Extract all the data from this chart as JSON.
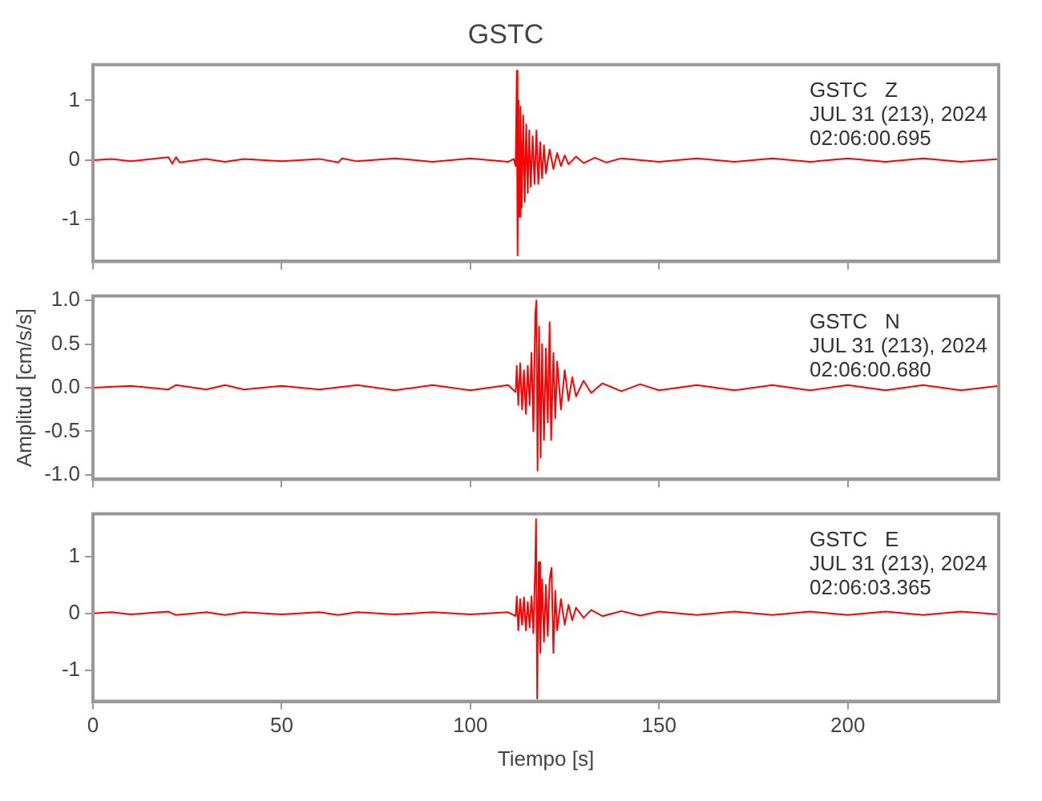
{
  "chart_data": [
    {
      "type": "line",
      "title": "GSTC",
      "xlim": [
        0,
        240
      ],
      "xticks": [
        0,
        50,
        100,
        150,
        200
      ],
      "ylim": [
        -1.7,
        1.6
      ],
      "yticks": [
        -1,
        0,
        1
      ],
      "grid": false,
      "marker": "none",
      "tick_labels": "y",
      "annotations": [
        "GSTC   Z",
        "JUL 31 (213), 2024",
        "02:06:00.695"
      ],
      "series": [
        {
          "color": "#ff0000",
          "x": [
            0,
            5,
            10,
            20,
            21,
            22,
            23,
            30,
            35,
            40,
            50,
            60,
            65,
            66,
            70,
            80,
            90,
            100,
            110,
            111.5,
            112,
            112.3,
            112.5,
            112.8,
            113,
            113.3,
            113.6,
            114,
            114.4,
            114.8,
            115.2,
            115.6,
            116,
            116.5,
            117,
            117.5,
            118,
            118.5,
            119,
            119.5,
            120,
            121,
            122,
            123,
            124,
            125,
            126,
            128,
            130,
            133,
            136,
            140,
            150,
            160,
            170,
            180,
            190,
            200,
            210,
            220,
            230,
            240
          ],
          "values": [
            0,
            0.02,
            -0.02,
            0.05,
            -0.06,
            0.05,
            -0.04,
            0.02,
            -0.03,
            0.02,
            -0.02,
            0.02,
            -0.04,
            0.03,
            -0.02,
            0.03,
            -0.03,
            0.03,
            -0.03,
            0.02,
            -0.1,
            1.5,
            -1.6,
            1.0,
            -0.95,
            0.9,
            -0.8,
            0.75,
            -0.7,
            0.6,
            -0.55,
            0.5,
            -0.45,
            0.4,
            -0.4,
            0.5,
            -0.4,
            0.3,
            -0.3,
            0.25,
            -0.22,
            0.18,
            -0.15,
            0.12,
            -0.1,
            0.08,
            -0.07,
            0.06,
            -0.05,
            0.04,
            -0.04,
            0.03,
            -0.03,
            0.03,
            -0.03,
            0.03,
            -0.03,
            0.03,
            -0.03,
            0.03,
            -0.03,
            0.02
          ]
        }
      ]
    },
    {
      "type": "line",
      "ylabel": "Amplitud [cm/s/s]",
      "xlim": [
        0,
        240
      ],
      "xticks": [
        0,
        50,
        100,
        150,
        200
      ],
      "ylim": [
        -1.05,
        1.05
      ],
      "yticks": [
        {
          "value": -1,
          "label": "-1.0"
        },
        -0.5,
        {
          "value": 0,
          "label": "0.0"
        },
        0.5,
        {
          "value": 1,
          "label": "1.0"
        }
      ],
      "grid": false,
      "marker": "none",
      "tick_labels": "y",
      "annotations": [
        "GSTC   N",
        "JUL 31 (213), 2024",
        "02:06:00.680"
      ],
      "series": [
        {
          "color": "#ff0000",
          "x": [
            0,
            10,
            20,
            22,
            30,
            35,
            40,
            50,
            60,
            70,
            80,
            90,
            100,
            110,
            112,
            112.3,
            112.7,
            113.2,
            113.7,
            114.2,
            114.7,
            115.2,
            115.7,
            116.2,
            116.7,
            117.2,
            117.5,
            117.8,
            118.2,
            118.6,
            119,
            119.5,
            120,
            120.5,
            121,
            121.4,
            122,
            122.5,
            123,
            124,
            125,
            126,
            127,
            128,
            130,
            132,
            135,
            140,
            145,
            150,
            160,
            170,
            180,
            190,
            200,
            210,
            220,
            230,
            240
          ],
          "values": [
            0,
            0.02,
            -0.02,
            0.03,
            -0.02,
            0.03,
            -0.02,
            0.02,
            -0.02,
            0.03,
            -0.03,
            0.03,
            -0.03,
            0.03,
            -0.05,
            0.25,
            -0.2,
            0.28,
            -0.25,
            0.2,
            -0.3,
            0.25,
            -0.2,
            0.4,
            -0.5,
            0.85,
            1.0,
            -0.95,
            0.7,
            -0.8,
            0.5,
            -0.6,
            0.45,
            -0.4,
            0.75,
            -0.6,
            0.4,
            -0.35,
            0.3,
            -0.25,
            0.2,
            -0.15,
            0.12,
            -0.1,
            0.08,
            -0.06,
            0.05,
            -0.04,
            0.04,
            -0.03,
            0.03,
            -0.03,
            0.03,
            -0.03,
            0.03,
            -0.03,
            0.03,
            -0.03,
            0.02
          ]
        }
      ]
    },
    {
      "type": "line",
      "xlabel": "Tiempo [s]",
      "xlim": [
        0,
        240
      ],
      "xticks": [
        0,
        50,
        100,
        150,
        200
      ],
      "ylim": [
        -1.55,
        1.75
      ],
      "yticks": [
        -1,
        0,
        1
      ],
      "grid": false,
      "marker": "none",
      "annotations": [
        "GSTC   E",
        "JUL 31 (213), 2024",
        "02:06:03.365"
      ],
      "series": [
        {
          "color": "#ff0000",
          "x": [
            0,
            5,
            10,
            20,
            22,
            30,
            35,
            40,
            50,
            60,
            65,
            70,
            80,
            90,
            100,
            110,
            112,
            112.3,
            112.7,
            113.2,
            113.7,
            114.2,
            114.7,
            115.2,
            115.7,
            116.2,
            116.7,
            117.2,
            117.4,
            117.7,
            118.1,
            118.5,
            119,
            119.5,
            120,
            120.5,
            121,
            121.5,
            122,
            122.5,
            123,
            124,
            125,
            126,
            127,
            128,
            130,
            132,
            135,
            140,
            145,
            150,
            160,
            170,
            180,
            190,
            200,
            210,
            220,
            230,
            240
          ],
          "values": [
            0,
            0.02,
            -0.02,
            0.03,
            -0.03,
            0.02,
            -0.03,
            0.02,
            -0.02,
            0.02,
            -0.03,
            0.02,
            -0.02,
            0.02,
            -0.02,
            0.02,
            -0.05,
            0.3,
            -0.3,
            0.25,
            -0.2,
            0.28,
            -0.3,
            0.2,
            -0.25,
            0.3,
            -0.35,
            0.9,
            1.66,
            -1.5,
            0.9,
            -0.7,
            0.6,
            -0.5,
            0.5,
            -0.4,
            0.6,
            0.8,
            -0.7,
            0.4,
            -0.3,
            0.25,
            -0.2,
            0.15,
            -0.12,
            0.1,
            -0.08,
            0.06,
            -0.05,
            0.04,
            -0.04,
            0.03,
            -0.03,
            0.03,
            -0.03,
            0.03,
            -0.03,
            0.03,
            -0.03,
            0.03,
            -0.02
          ]
        }
      ]
    }
  ]
}
